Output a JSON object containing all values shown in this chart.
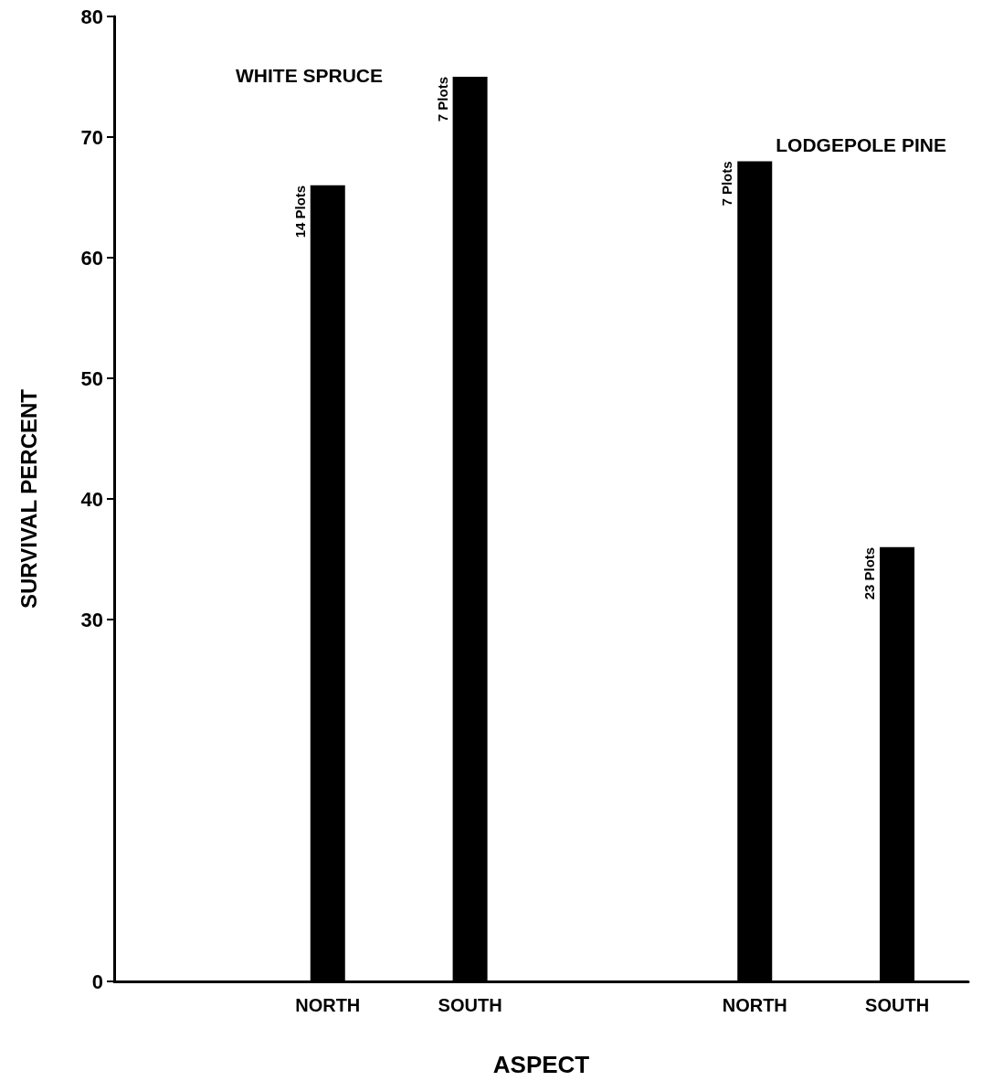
{
  "chart_data": {
    "type": "bar",
    "xlabel": "ASPECT",
    "ylabel": "SURVIVAL PERCENT",
    "categories": [
      null,
      "NORTH",
      "SOUTH",
      null,
      "NORTH",
      "SOUTH"
    ],
    "values": [
      null,
      66,
      75,
      null,
      68,
      36
    ],
    "color": "#000000",
    "ylim": [
      0,
      80
    ],
    "yticks": [
      0,
      30,
      40,
      50,
      60,
      70,
      80
    ],
    "grid": false,
    "annotations": [
      "WHITE SPRUCE",
      "LODGEPOLE PINE",
      "14 Plots",
      "7 Plots",
      "7 Plots",
      "23 Plots"
    ]
  }
}
